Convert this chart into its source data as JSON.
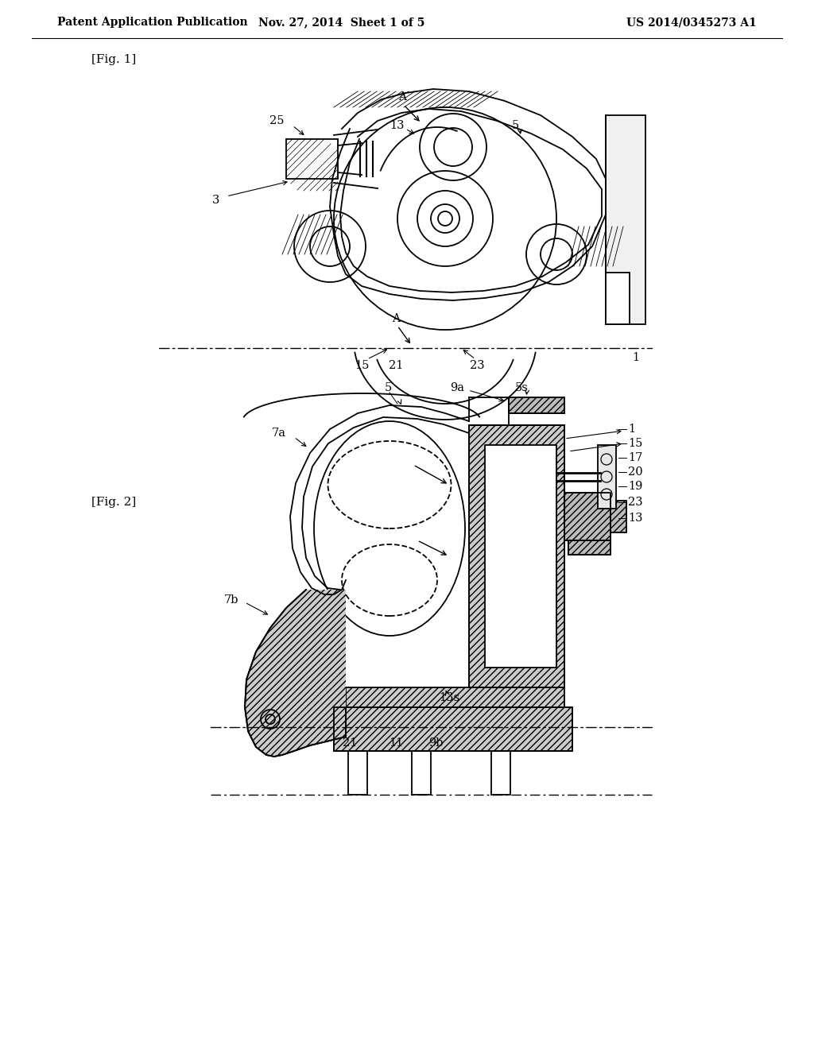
{
  "background_color": "#ffffff",
  "line_color": "#000000",
  "header_left": "Patent Application Publication",
  "header_mid": "Nov. 27, 2014  Sheet 1 of 5",
  "header_right": "US 2014/0345273 A1",
  "fig1_label": "[Fig. 1]",
  "fig2_label": "[Fig. 2]",
  "label_fontsize": 11,
  "header_fontsize": 10,
  "annot_fontsize": 10.5
}
